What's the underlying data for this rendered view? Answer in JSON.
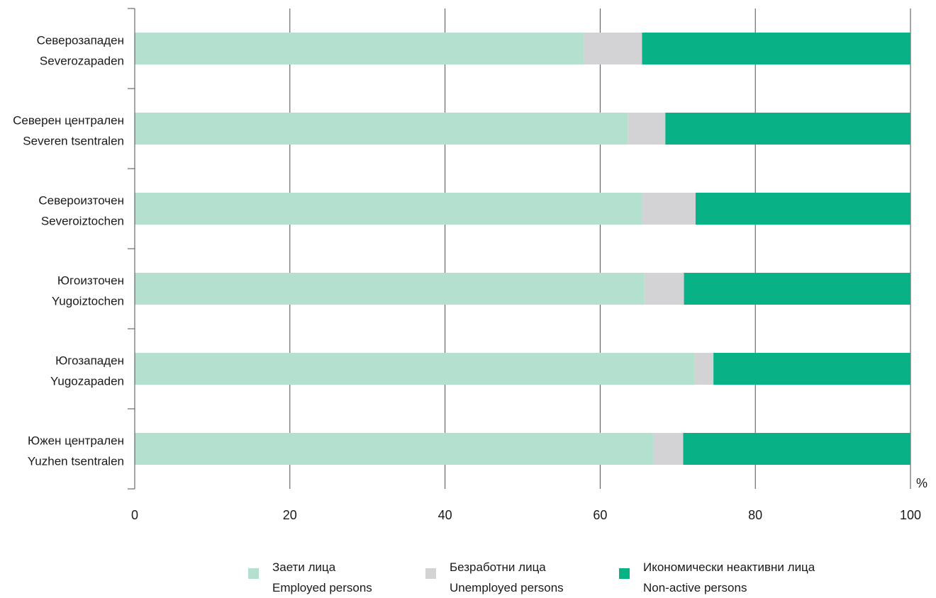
{
  "chart_data": {
    "type": "bar",
    "orientation": "horizontal",
    "stacked": true,
    "categories": [
      [
        "Северозападен",
        "Severozapaden"
      ],
      [
        "Северен централен",
        "Severen tsentralen"
      ],
      [
        "Североизточен",
        "Severoiztochen"
      ],
      [
        "Югоизточен",
        "Yugoiztochen"
      ],
      [
        "Югозападен",
        "Yugozapaden"
      ],
      [
        "Южен централен",
        "Yuzhen tsentralen"
      ]
    ],
    "series": [
      {
        "name": [
          "Заети лица",
          "Employed persons"
        ],
        "color": "#b3e0cf",
        "values": [
          57.9,
          63.6,
          65.4,
          65.7,
          72.2,
          66.9
        ]
      },
      {
        "name": [
          "Безработни лица",
          "Unemployed persons"
        ],
        "color": "#d3d3d5",
        "values": [
          7.5,
          4.8,
          6.9,
          5.1,
          2.4,
          3.8
        ]
      },
      {
        "name": [
          "Икономически неактивни лица",
          "Non-active persons"
        ],
        "color": "#08b286",
        "values": [
          34.6,
          31.6,
          27.7,
          29.2,
          25.4,
          29.3
        ]
      }
    ],
    "xlim": [
      0,
      100
    ],
    "xticks": [
      0,
      20,
      40,
      60,
      80,
      100
    ],
    "unit_label": "%",
    "grid": true,
    "legend_position": "bottom"
  }
}
